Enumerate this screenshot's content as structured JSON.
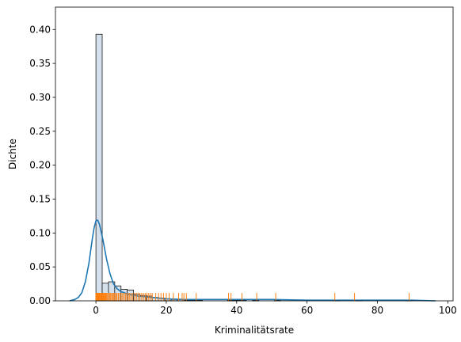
{
  "chart_data": {
    "type": "histogram",
    "title": "",
    "xlabel": "Kriminalitätsrate",
    "ylabel": "Dichte",
    "xlim": [
      -11.5,
      101.5
    ],
    "ylim": [
      0,
      0.433
    ],
    "xticks": [
      0,
      20,
      40,
      60,
      80,
      100
    ],
    "yticks": [
      0.0,
      0.05,
      0.1,
      0.15,
      0.2,
      0.25,
      0.3,
      0.35,
      0.4
    ],
    "ytick_labels": [
      "0.00",
      "0.05",
      "0.10",
      "0.15",
      "0.20",
      "0.25",
      "0.30",
      "0.35",
      "0.40"
    ],
    "grid": false,
    "histogram": {
      "bin_width": 1.78,
      "bins": [
        {
          "x0": 0.006,
          "value": 0.393
        },
        {
          "x0": 1.786,
          "value": 0.026
        },
        {
          "x0": 3.566,
          "value": 0.028
        },
        {
          "x0": 5.346,
          "value": 0.022
        },
        {
          "x0": 7.126,
          "value": 0.017
        },
        {
          "x0": 8.906,
          "value": 0.016
        },
        {
          "x0": 10.686,
          "value": 0.01
        },
        {
          "x0": 12.466,
          "value": 0.008
        },
        {
          "x0": 14.246,
          "value": 0.007
        },
        {
          "x0": 16.026,
          "value": 0.005
        },
        {
          "x0": 17.806,
          "value": 0.004
        },
        {
          "x0": 19.586,
          "value": 0.003
        },
        {
          "x0": 21.366,
          "value": 0.002
        },
        {
          "x0": 23.146,
          "value": 0.002
        },
        {
          "x0": 24.926,
          "value": 0.001
        },
        {
          "x0": 26.706,
          "value": 0.001
        },
        {
          "x0": 28.486,
          "value": 0.001
        },
        {
          "x0": 37.386,
          "value": 0.001
        },
        {
          "x0": 39.166,
          "value": 0.001
        },
        {
          "x0": 40.946,
          "value": 0.001
        },
        {
          "x0": 44.506,
          "value": 0.001
        },
        {
          "x0": 50.736,
          "value": 0.001
        },
        {
          "x0": 67.646,
          "value": 0.001
        },
        {
          "x0": 73.876,
          "value": 0.001
        },
        {
          "x0": 88.116,
          "value": 0.001
        }
      ]
    },
    "kde": {
      "x": [
        -7.5,
        -6,
        -5,
        -4,
        -3,
        -2,
        -1,
        -0.5,
        0,
        0.5,
        1,
        2,
        3,
        4,
        5,
        6,
        7,
        8,
        9,
        10,
        12,
        14,
        16,
        18,
        20,
        25,
        30,
        40,
        50,
        60,
        70,
        80,
        90,
        96.5
      ],
      "y": [
        0.0,
        0.002,
        0.005,
        0.012,
        0.028,
        0.055,
        0.092,
        0.108,
        0.118,
        0.119,
        0.113,
        0.09,
        0.062,
        0.04,
        0.025,
        0.018,
        0.014,
        0.012,
        0.01,
        0.009,
        0.007,
        0.006,
        0.005,
        0.004,
        0.003,
        0.002,
        0.002,
        0.002,
        0.002,
        0.001,
        0.001,
        0.001,
        0.001,
        0.0
      ]
    },
    "rug": [
      0.01,
      0.03,
      0.05,
      0.07,
      0.09,
      0.12,
      0.15,
      0.2,
      0.25,
      0.3,
      0.35,
      0.4,
      0.5,
      0.6,
      0.7,
      0.8,
      0.9,
      1.0,
      1.1,
      1.2,
      1.4,
      1.6,
      1.8,
      2.0,
      2.2,
      2.4,
      2.6,
      2.8,
      3.0,
      3.3,
      3.6,
      3.9,
      4.2,
      4.5,
      4.8,
      5.1,
      5.4,
      5.7,
      6.0,
      6.4,
      6.8,
      7.2,
      7.6,
      8.0,
      8.4,
      8.8,
      9.2,
      9.6,
      10.0,
      10.5,
      11.0,
      11.5,
      12.0,
      12.5,
      13.0,
      13.5,
      14.0,
      14.5,
      15.0,
      15.5,
      16.0,
      17.0,
      17.8,
      18.5,
      19.2,
      20.0,
      20.8,
      22.0,
      23.5,
      24.5,
      25.0,
      25.7,
      28.5,
      37.7,
      38.4,
      41.5,
      45.7,
      51.1,
      67.9,
      73.5,
      89.0
    ],
    "colors": {
      "bar_fill": "#d4e1ed",
      "bar_edge": "#1a1a1a",
      "kde": "#1f77b4",
      "rug": "#ff7f0e"
    }
  }
}
